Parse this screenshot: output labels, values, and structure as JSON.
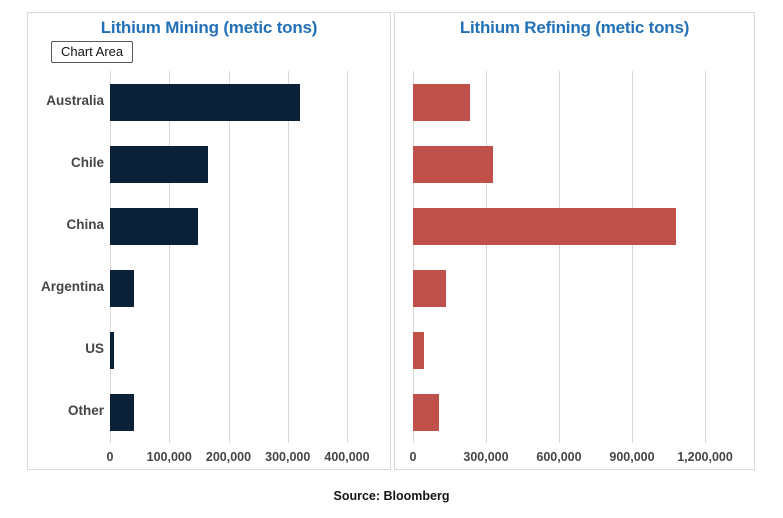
{
  "page": {
    "source": "Source: Bloomberg"
  },
  "tooltip": {
    "label": "Chart Area"
  },
  "colors": {
    "title": "#2271b8",
    "mining_bar": "#0a2138",
    "refining_bar": "#c0504a",
    "axis_text": "#454545",
    "gridline": "#d9d9d9",
    "panel_border": "#d9d9d9"
  },
  "chart_data": [
    {
      "type": "bar",
      "orientation": "horizontal",
      "title": "Lithium Mining (metic tons)",
      "categories": [
        "Australia",
        "Chile",
        "China",
        "Argentina",
        "US",
        "Other"
      ],
      "values": [
        320000,
        165000,
        148000,
        40000,
        6000,
        40000
      ],
      "xlabel": "",
      "ylabel": "",
      "xlim": [
        0,
        400000
      ],
      "xticks": [
        0,
        100000,
        200000,
        300000,
        400000
      ],
      "xtick_labels": [
        "0",
        "100,000",
        "200,000",
        "300,000",
        "400,000"
      ],
      "bar_color": "#0a2138",
      "grid": true,
      "legend": false,
      "show_category_labels": true
    },
    {
      "type": "bar",
      "orientation": "horizontal",
      "title": "Lithium Refining (metic tons)",
      "categories": [
        "Australia",
        "Chile",
        "China",
        "Argentina",
        "US",
        "Other"
      ],
      "values": [
        235000,
        330000,
        1080000,
        135000,
        45000,
        105000
      ],
      "xlabel": "",
      "ylabel": "",
      "xlim": [
        0,
        1200000
      ],
      "xticks": [
        0,
        300000,
        600000,
        900000,
        1200000
      ],
      "xtick_labels": [
        "0",
        "300,000",
        "600,000",
        "900,000",
        "1,200,000"
      ],
      "bar_color": "#c0504a",
      "grid": true,
      "legend": false,
      "show_category_labels": false
    }
  ]
}
